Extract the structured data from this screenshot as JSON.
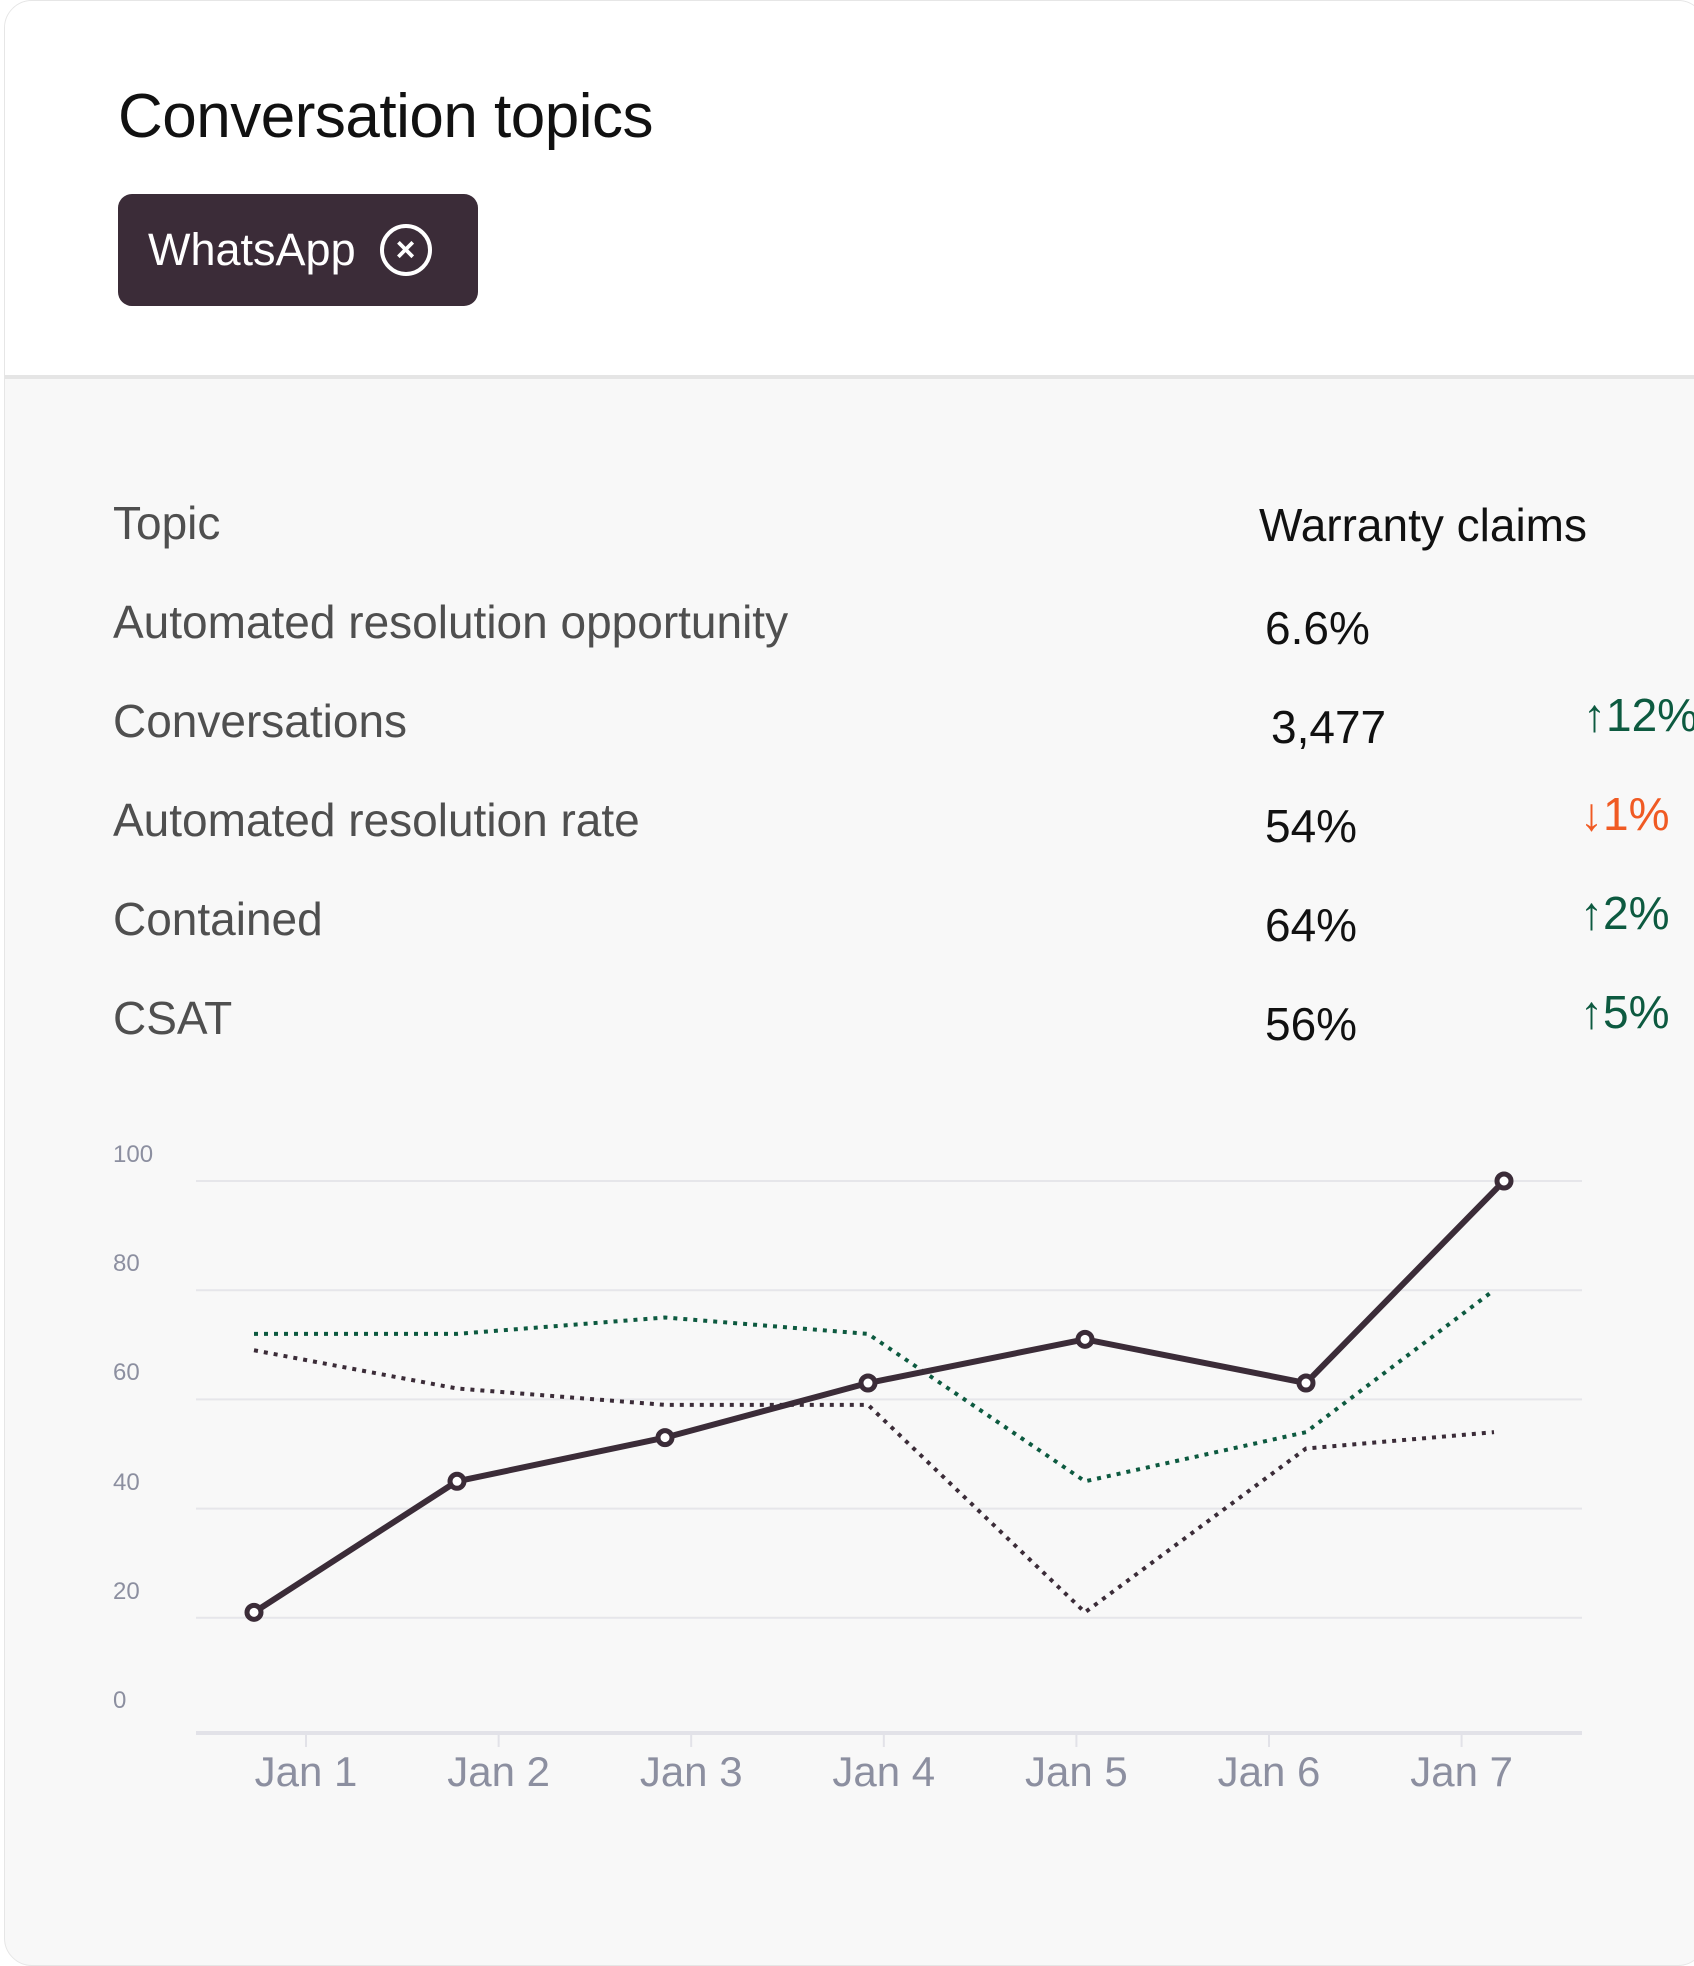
{
  "header": {
    "title": "Conversation topics",
    "filter_chip": {
      "label": "WhatsApp",
      "icon": "close-circle-icon"
    }
  },
  "table": {
    "topic_header": "Topic",
    "column_header": "Warranty claims",
    "rows": [
      {
        "label": "Automated resolution opportunity",
        "value": "6.6%",
        "delta": "",
        "direction": ""
      },
      {
        "label": "Conversations",
        "value": "3,477",
        "delta": "↑12%",
        "direction": "up"
      },
      {
        "label": "Automated resolution rate",
        "value": "54%",
        "delta": "↓1%",
        "direction": "down"
      },
      {
        "label": "Contained",
        "value": "64%",
        "delta": "↑2%",
        "direction": "up"
      },
      {
        "label": "CSAT",
        "value": "56%",
        "delta": "↑5%",
        "direction": "up"
      }
    ]
  },
  "colors": {
    "primary": "#3b2c38",
    "positive": "#0d5a40",
    "negative": "#f05a23",
    "grid": "#e6e6ea",
    "axis_text": "#8c8fa0"
  },
  "chart_data": {
    "type": "line",
    "title": "",
    "xlabel": "",
    "ylabel": "",
    "categories": [
      "Jan 1",
      "Jan 2",
      "Jan 3",
      "Jan 4",
      "Jan 5",
      "Jan 6",
      "Jan 7"
    ],
    "yticks": [
      0,
      20,
      40,
      60,
      80,
      100
    ],
    "ylim": [
      0,
      100
    ],
    "grid": true,
    "legend": "none",
    "series": [
      {
        "name": "primary",
        "style": "solid-markers",
        "color": "#3b2c38",
        "values": [
          21,
          45,
          53,
          63,
          71,
          63,
          100
        ]
      },
      {
        "name": "comparison-green",
        "style": "dotted",
        "color": "#0d5a40",
        "values": [
          72,
          72,
          75,
          72,
          45,
          54,
          80
        ]
      },
      {
        "name": "comparison-dark",
        "style": "dotted",
        "color": "#3b2c38",
        "values": [
          69,
          62,
          59,
          59,
          21,
          51,
          54
        ]
      }
    ]
  }
}
